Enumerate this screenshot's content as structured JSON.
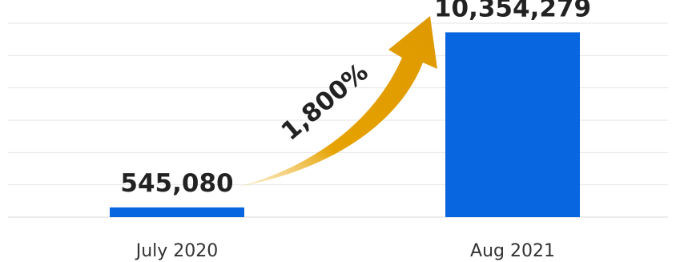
{
  "chart_data": {
    "type": "bar",
    "categories": [
      "July 2020",
      "Aug 2021"
    ],
    "values": [
      545080,
      10354279
    ],
    "value_labels": [
      "545,080",
      "10,354,279"
    ],
    "annotation": "1,800%",
    "ylim": [
      0,
      11000000
    ],
    "grid": true,
    "bar_color": "#0866e0",
    "arrow_color": "#e6a200"
  }
}
